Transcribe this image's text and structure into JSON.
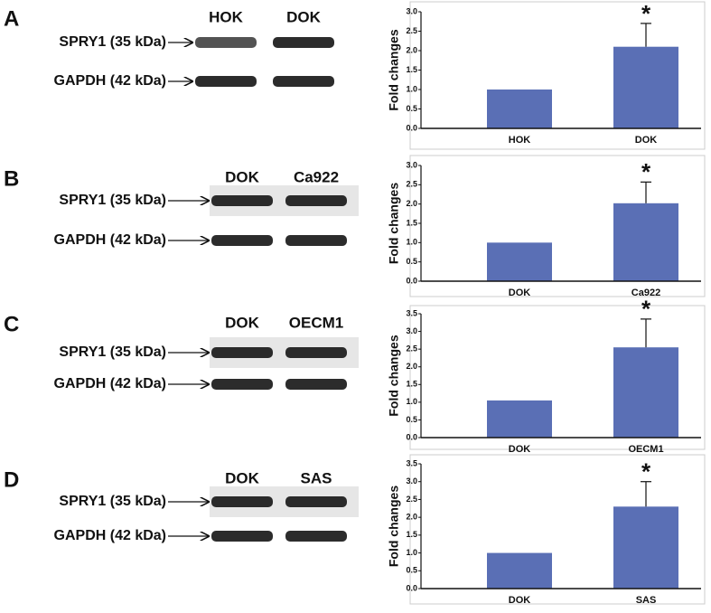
{
  "blots": [
    {
      "label": "A",
      "lanes": [
        "HOK",
        "DOK"
      ],
      "bands": [
        "SPRY1 (35 kDa)",
        "GAPDH (42 kDa)"
      ]
    },
    {
      "label": "B",
      "lanes": [
        "DOK",
        "Ca922"
      ],
      "bands": [
        "SPRY1 (35 kDa)",
        "GAPDH (42 kDa)"
      ]
    },
    {
      "label": "C",
      "lanes": [
        "DOK",
        "OECM1"
      ],
      "bands": [
        "SPRY1 (35 kDa)",
        "GAPDH (42 kDa)"
      ]
    },
    {
      "label": "D",
      "lanes": [
        "DOK",
        "SAS"
      ],
      "bands": [
        "SPRY1 (35 kDa)",
        "GAPDH (42 kDa)"
      ]
    }
  ],
  "chart_data": [
    {
      "type": "bar",
      "ylabel": "Fold changes",
      "categories": [
        "HOK",
        "DOK"
      ],
      "values": [
        1.0,
        2.1
      ],
      "errors": [
        0,
        0.6
      ],
      "color": "#5a6fb5",
      "annotation": "*",
      "ylim": [
        0,
        3.0
      ],
      "yticks": [
        {
          "value": 0,
          "label": "0.0"
        },
        {
          "value": 0.5,
          "label": "0.5"
        },
        {
          "value": 1,
          "label": "1.0"
        },
        {
          "value": 1.5,
          "label": "1.5"
        },
        {
          "value": 2,
          "label": "2.0"
        },
        {
          "value": 2.5,
          "label": "2.5"
        },
        {
          "value": 3,
          "label": "3.0"
        }
      ]
    },
    {
      "type": "bar",
      "ylabel": "Fold changes",
      "categories": [
        "DOK",
        "Ca922"
      ],
      "values": [
        1.0,
        2.02
      ],
      "errors": [
        0,
        0.55
      ],
      "color": "#5a6fb5",
      "annotation": "*",
      "ylim": [
        0,
        3.0
      ],
      "yticks": [
        {
          "value": 0,
          "label": "0.0"
        },
        {
          "value": 0.5,
          "label": "0.5"
        },
        {
          "value": 1,
          "label": "1.0"
        },
        {
          "value": 1.5,
          "label": "1.5"
        },
        {
          "value": 2,
          "label": "2.0"
        },
        {
          "value": 2.5,
          "label": "2.5"
        },
        {
          "value": 3,
          "label": "3.0"
        }
      ]
    },
    {
      "type": "bar",
      "ylabel": "Fold changes",
      "categories": [
        "DOK",
        "OECM1"
      ],
      "values": [
        1.05,
        2.55
      ],
      "errors": [
        0,
        0.8
      ],
      "color": "#5a6fb5",
      "annotation": "*",
      "ylim": [
        0,
        3.5
      ],
      "yticks": [
        {
          "value": 0,
          "label": "0.0"
        },
        {
          "value": 0.5,
          "label": "0.5"
        },
        {
          "value": 1,
          "label": "1.0"
        },
        {
          "value": 1.5,
          "label": "1.5"
        },
        {
          "value": 2,
          "label": "2.0"
        },
        {
          "value": 2.5,
          "label": "2.5"
        },
        {
          "value": 3,
          "label": "3.0"
        },
        {
          "value": 3.5,
          "label": "3.5"
        }
      ]
    },
    {
      "type": "bar",
      "ylabel": "Fold changes",
      "categories": [
        "DOK",
        "SAS"
      ],
      "values": [
        1.0,
        2.3
      ],
      "errors": [
        0,
        0.7
      ],
      "color": "#5a6fb5",
      "annotation": "*",
      "ylim": [
        0,
        3.5
      ],
      "yticks": [
        {
          "value": 0,
          "label": "0.0"
        },
        {
          "value": 0.5,
          "label": "0.5"
        },
        {
          "value": 1,
          "label": "1.0"
        },
        {
          "value": 1.5,
          "label": "1.5"
        },
        {
          "value": 2,
          "label": "2.0"
        },
        {
          "value": 2.5,
          "label": "2.5"
        },
        {
          "value": 3,
          "label": "3.0"
        },
        {
          "value": 3.5,
          "label": "3.5"
        }
      ]
    }
  ]
}
